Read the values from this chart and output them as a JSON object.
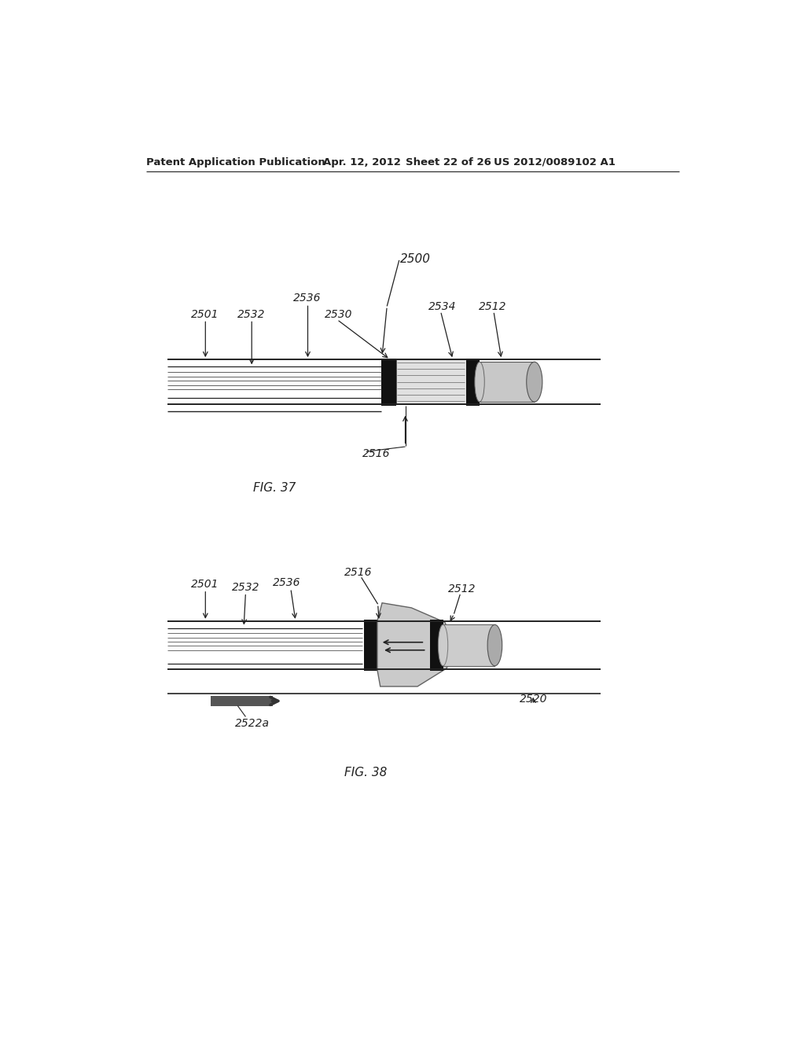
{
  "bg_color": "#ffffff",
  "header_text": "Patent Application Publication",
  "header_date": "Apr. 12, 2012",
  "header_sheet": "Sheet 22 of 26",
  "header_patent": "US 2012/0089102 A1",
  "fig37_label": "FIG. 37",
  "fig38_label": "FIG. 38",
  "label_2500": "2500",
  "label_2501_37": "2501",
  "label_2532_37": "2532",
  "label_2536_37": "2536",
  "label_2530": "2530",
  "label_2534": "2534",
  "label_2512_37": "2512",
  "label_2516_37": "2516",
  "label_2501_38": "2501",
  "label_2532_38": "2532",
  "label_2536_38": "2536",
  "label_2516_38": "2516",
  "label_2512_38": "2512",
  "label_2520": "2520",
  "label_2522a": "2522a",
  "text_color": "#222222",
  "line_color": "#222222",
  "black_fill": "#111111",
  "mid_gray": "#bbbbbb",
  "light_gray": "#d8d8d8"
}
